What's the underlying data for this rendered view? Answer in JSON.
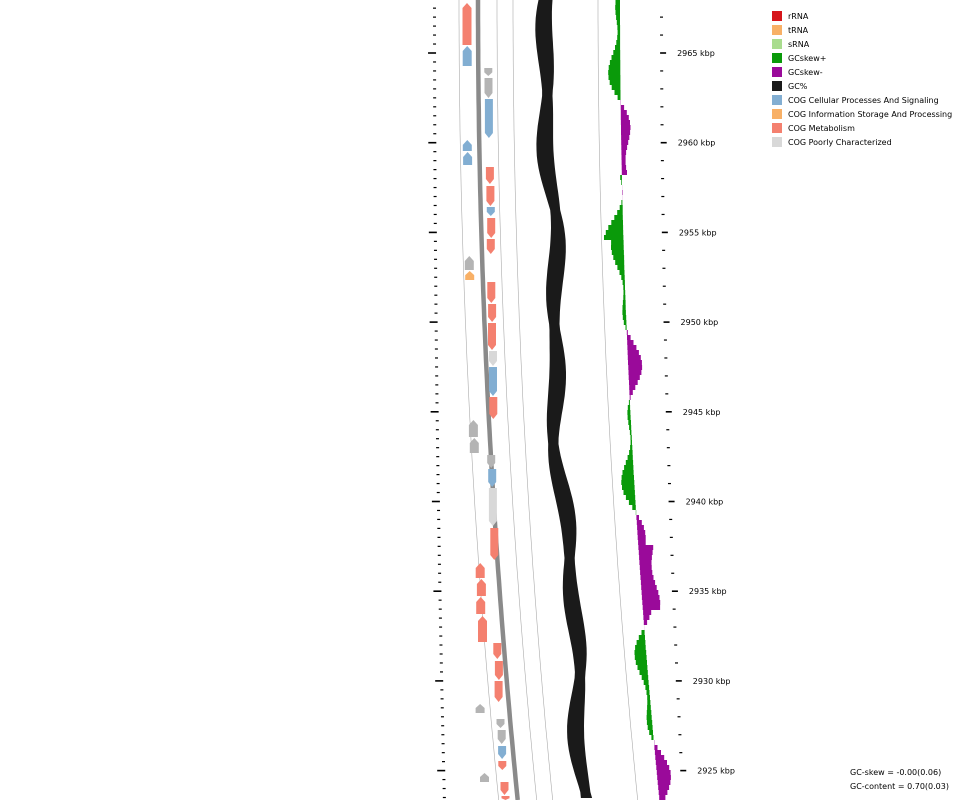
{
  "legend": [
    {
      "label": "rRNA",
      "color": "#d6161b"
    },
    {
      "label": "tRNA",
      "color": "#f8b066"
    },
    {
      "label": "sRNA",
      "color": "#a9dc8e"
    },
    {
      "label": "GCskew+",
      "color": "#0a9a0a"
    },
    {
      "label": "GCskew-",
      "color": "#9a0a9a"
    },
    {
      "label": "GC%",
      "color": "#1a1a1a"
    },
    {
      "label": "COG Cellular Processes And Signaling",
      "color": "#82aed2"
    },
    {
      "label": "COG Information Storage And Processing",
      "color": "#f8b066"
    },
    {
      "label": "COG Metabolism",
      "color": "#f4806f"
    },
    {
      "label": "COG Poorly Characterized",
      "color": "#d8d8d8"
    }
  ],
  "axis": {
    "unit": "kbp",
    "ticks": [
      {
        "kbp": 2965,
        "label": "2965 kbp"
      },
      {
        "kbp": 2960,
        "label": "2960 kbp"
      },
      {
        "kbp": 2955,
        "label": "2955 kbp"
      },
      {
        "kbp": 2950,
        "label": "2950 kbp"
      },
      {
        "kbp": 2945,
        "label": "2945 kbp"
      },
      {
        "kbp": 2940,
        "label": "2940 kbp"
      },
      {
        "kbp": 2935,
        "label": "2935 kbp"
      },
      {
        "kbp": 2930,
        "label": "2930 kbp"
      },
      {
        "kbp": 2925,
        "label": "2925 kbp"
      }
    ]
  },
  "stats": {
    "gc_skew": "GC-skew = -0.00(0.06)",
    "gc_content": "GC-content = 0.70(0.03)"
  }
}
